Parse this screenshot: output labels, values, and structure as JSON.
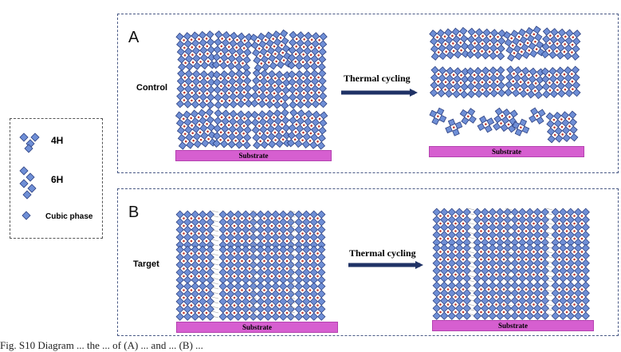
{
  "panels": {
    "a": {
      "letter": "A",
      "side_label": "Control",
      "arrow_label": "Thermal cycling",
      "substrate_before": "Substrate",
      "substrate_after": "Substrate"
    },
    "b": {
      "letter": "B",
      "side_label": "Target",
      "arrow_label": "Thermal cycling",
      "substrate_before": "Substrate",
      "substrate_after": "Substrate"
    }
  },
  "legend": {
    "items": [
      {
        "label": "4H",
        "icon": "4h-polytype-icon"
      },
      {
        "label": "6H",
        "icon": "6h-polytype-icon"
      },
      {
        "label": "Cubic phase",
        "icon": "cubic-phase-icon"
      }
    ]
  },
  "colors": {
    "panel_border": "#4a5a86",
    "octahedron_fill": "#6f8fd6",
    "octahedron_stroke": "#2b3f80",
    "cation": "#c0392b",
    "substrate": "#d65fd0",
    "arrow": "#1f3266"
  },
  "caption": "Fig. S10  Diagram ... the ... of (A) ... and ... (B) ..."
}
